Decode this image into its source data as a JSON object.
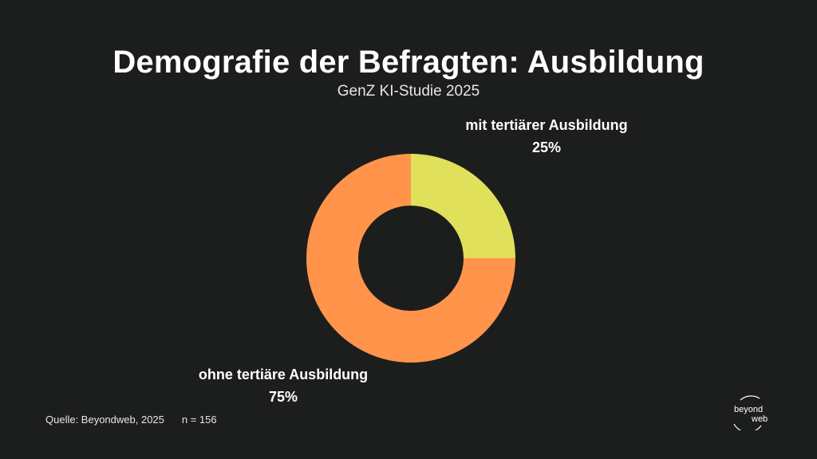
{
  "header": {
    "title": "Demografie der Befragten: Ausbildung",
    "subtitle": "GenZ KI-Studie 2025"
  },
  "chart_data": {
    "type": "pie",
    "variant": "donut",
    "title": "Demografie der Befragten: Ausbildung",
    "subtitle": "GenZ KI-Studie 2025",
    "categories": [
      "mit tertiärer Ausbildung",
      "ohne tertiäre Ausbildung"
    ],
    "values": [
      25,
      75
    ],
    "value_labels": [
      "25%",
      "75%"
    ],
    "colors": [
      "#e0e05a",
      "#ff944a"
    ],
    "legend": "none",
    "grid": false
  },
  "footer": {
    "source": "Quelle: Beyondweb, 2025",
    "sample": "n = 156"
  },
  "logo": {
    "line1": "beyond",
    "line2": "web"
  }
}
